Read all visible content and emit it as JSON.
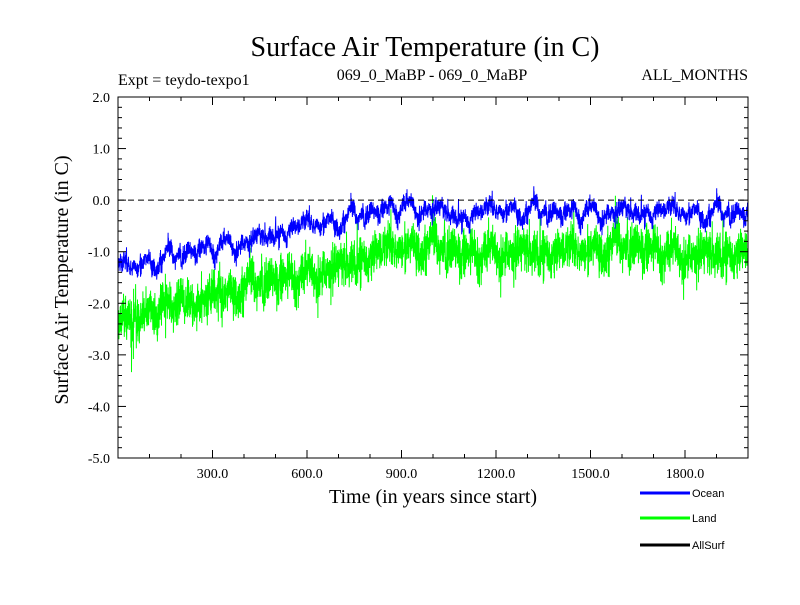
{
  "chart_data": {
    "type": "line",
    "title": "Surface Air Temperature (in C)",
    "subtitle_left": "Expt = teydo-texpo1",
    "subtitle_center": "069_0_MaBP - 069_0_MaBP",
    "subtitle_right": "ALL_MONTHS",
    "xlabel": "Time (in years since start)",
    "ylabel": "Surface Air Temperature (in C)",
    "xlim": [
      0,
      2000
    ],
    "ylim": [
      -5.0,
      2.0
    ],
    "x_ticks": [
      300,
      600,
      900,
      1200,
      1500,
      1800
    ],
    "x_tick_labels": [
      "300.0",
      "600.0",
      "900.0",
      "1200.0",
      "1500.0",
      "1800.0"
    ],
    "y_ticks": [
      -5,
      -4,
      -3,
      -2,
      -1,
      0,
      1,
      2
    ],
    "y_tick_labels": [
      "-5.0",
      "-4.0",
      "-3.0",
      "-2.0",
      "-1.0",
      "0.0",
      "1.0",
      "2.0"
    ],
    "reference_line": {
      "y": 0.0,
      "style": "dashed"
    },
    "series": [
      {
        "name": "Land",
        "color": "#00ff00",
        "trend_x": [
          0,
          100,
          200,
          300,
          400,
          500,
          600,
          700,
          800,
          900,
          1000,
          1100,
          1200,
          1300,
          1400,
          1500,
          1600,
          1700,
          1800,
          1900,
          2000
        ],
        "trend_mean": [
          -2.4,
          -2.2,
          -2.0,
          -1.8,
          -1.65,
          -1.5,
          -1.35,
          -1.2,
          -1.0,
          -0.85,
          -0.85,
          -1.0,
          -0.9,
          -0.9,
          -0.95,
          -0.9,
          -0.85,
          -0.9,
          -0.95,
          -0.95,
          -0.95
        ],
        "noise_amplitude": 0.75
      },
      {
        "name": "Ocean",
        "color": "#0000ff",
        "trend_x": [
          0,
          100,
          200,
          300,
          400,
          500,
          600,
          700,
          800,
          900,
          1000,
          1100,
          1200,
          1300,
          1400,
          1500,
          1600,
          1700,
          1800,
          1900,
          2000
        ],
        "trend_mean": [
          -1.3,
          -1.15,
          -1.0,
          -0.85,
          -0.7,
          -0.55,
          -0.45,
          -0.35,
          -0.2,
          -0.05,
          -0.05,
          -0.25,
          -0.15,
          -0.15,
          -0.2,
          -0.15,
          -0.1,
          -0.15,
          -0.2,
          -0.2,
          -0.2
        ],
        "noise_amplitude": 0.3
      },
      {
        "name": "AllSurf",
        "color": "#000000",
        "trend_x": [],
        "trend_mean": [],
        "noise_amplitude": 0
      }
    ],
    "legend": [
      "Ocean",
      "Land",
      "AllSurf"
    ],
    "legend_position": "bottom-right"
  }
}
